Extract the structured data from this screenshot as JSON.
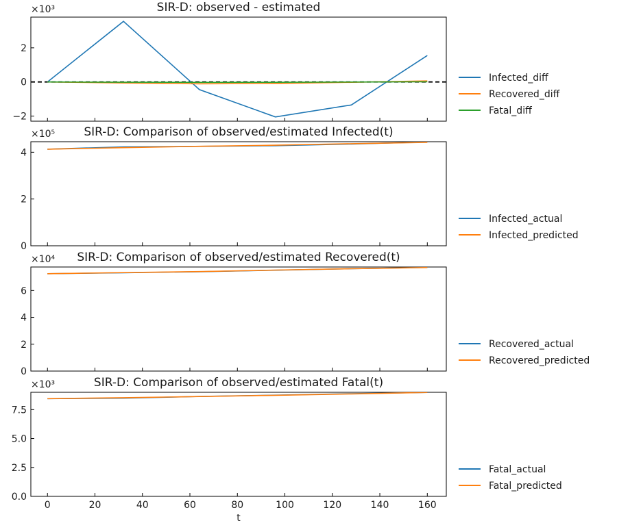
{
  "chart_data": [
    {
      "type": "line",
      "title": "SIR-D: observed - estimated",
      "xlabel": "",
      "ylabel": "",
      "ylim": [
        -2300,
        3800
      ],
      "y_scale_label": "×10³",
      "y_ticks": [
        -2000,
        0,
        2000
      ],
      "y_tick_labels": [
        "−2",
        "0",
        "2"
      ],
      "zero_line": true,
      "legend_placement": "right",
      "series": [
        {
          "name": "Infected_diff",
          "color": "#1f77b4",
          "x": [
            0,
            32,
            64,
            96,
            128,
            160
          ],
          "values": [
            0,
            3550,
            -450,
            -2050,
            -1350,
            1550
          ]
        },
        {
          "name": "Recovered_diff",
          "color": "#ff7f0e",
          "x": [
            0,
            32,
            64,
            96,
            128,
            160
          ],
          "values": [
            0,
            -60,
            -110,
            -90,
            -20,
            60
          ]
        },
        {
          "name": "Fatal_diff",
          "color": "#2ca02c",
          "x": [
            0,
            32,
            64,
            96,
            128,
            160
          ],
          "values": [
            0,
            -15,
            -25,
            -20,
            -5,
            10
          ]
        }
      ]
    },
    {
      "type": "line",
      "title": "SIR-D: Comparison of observed/estimated Infected(t)",
      "xlabel": "",
      "ylabel": "",
      "ylim": [
        0,
        445000
      ],
      "y_scale_label": "×10⁵",
      "y_ticks": [
        0,
        200000,
        400000
      ],
      "y_tick_labels": [
        "0",
        "2",
        "4"
      ],
      "legend_placement": "right",
      "series": [
        {
          "name": "Infected_actual",
          "color": "#1f77b4",
          "x": [
            0,
            32,
            64,
            96,
            128,
            160
          ],
          "values": [
            413000,
            423000,
            425000,
            428000,
            435000,
            444000
          ]
        },
        {
          "name": "Infected_predicted",
          "color": "#ff7f0e",
          "x": [
            0,
            32,
            64,
            96,
            128,
            160
          ],
          "values": [
            413000,
            419500,
            425500,
            430000,
            436500,
            442500
          ]
        }
      ]
    },
    {
      "type": "line",
      "title": "SIR-D: Comparison of observed/estimated Recovered(t)",
      "xlabel": "",
      "ylabel": "",
      "ylim": [
        0,
        77500
      ],
      "y_scale_label": "×10⁴",
      "y_ticks": [
        0,
        20000,
        40000,
        60000
      ],
      "y_tick_labels": [
        "0",
        "2",
        "4",
        "6"
      ],
      "legend_placement": "right",
      "series": [
        {
          "name": "Recovered_actual",
          "color": "#1f77b4",
          "x": [
            0,
            32,
            64,
            96,
            128,
            160
          ],
          "values": [
            72500,
            73200,
            74000,
            75100,
            76200,
            77200
          ]
        },
        {
          "name": "Recovered_predicted",
          "color": "#ff7f0e",
          "x": [
            0,
            32,
            64,
            96,
            128,
            160
          ],
          "values": [
            72500,
            73300,
            74100,
            75200,
            76200,
            77100
          ]
        }
      ]
    },
    {
      "type": "line",
      "title": "SIR-D: Comparison of observed/estimated Fatal(t)",
      "xlabel": "t",
      "ylabel": "",
      "ylim": [
        0,
        9000
      ],
      "y_scale_label": "×10³",
      "y_ticks": [
        0,
        2500,
        5000,
        7500
      ],
      "y_tick_labels": [
        "0.0",
        "2.5",
        "5.0",
        "7.5"
      ],
      "x_ticks": [
        0,
        20,
        40,
        60,
        80,
        100,
        120,
        140,
        160
      ],
      "legend_placement": "right",
      "series": [
        {
          "name": "Fatal_actual",
          "color": "#1f77b4",
          "x": [
            0,
            32,
            64,
            96,
            128,
            160
          ],
          "values": [
            8450,
            8490,
            8640,
            8750,
            8880,
            8990
          ]
        },
        {
          "name": "Fatal_predicted",
          "color": "#ff7f0e",
          "x": [
            0,
            32,
            64,
            96,
            128,
            160
          ],
          "values": [
            8450,
            8530,
            8630,
            8740,
            8860,
            8990
          ]
        }
      ]
    }
  ],
  "shared_x": {
    "xlim": [
      -7,
      168
    ],
    "ticks": [
      0,
      20,
      40,
      60,
      80,
      100,
      120,
      140,
      160
    ]
  }
}
